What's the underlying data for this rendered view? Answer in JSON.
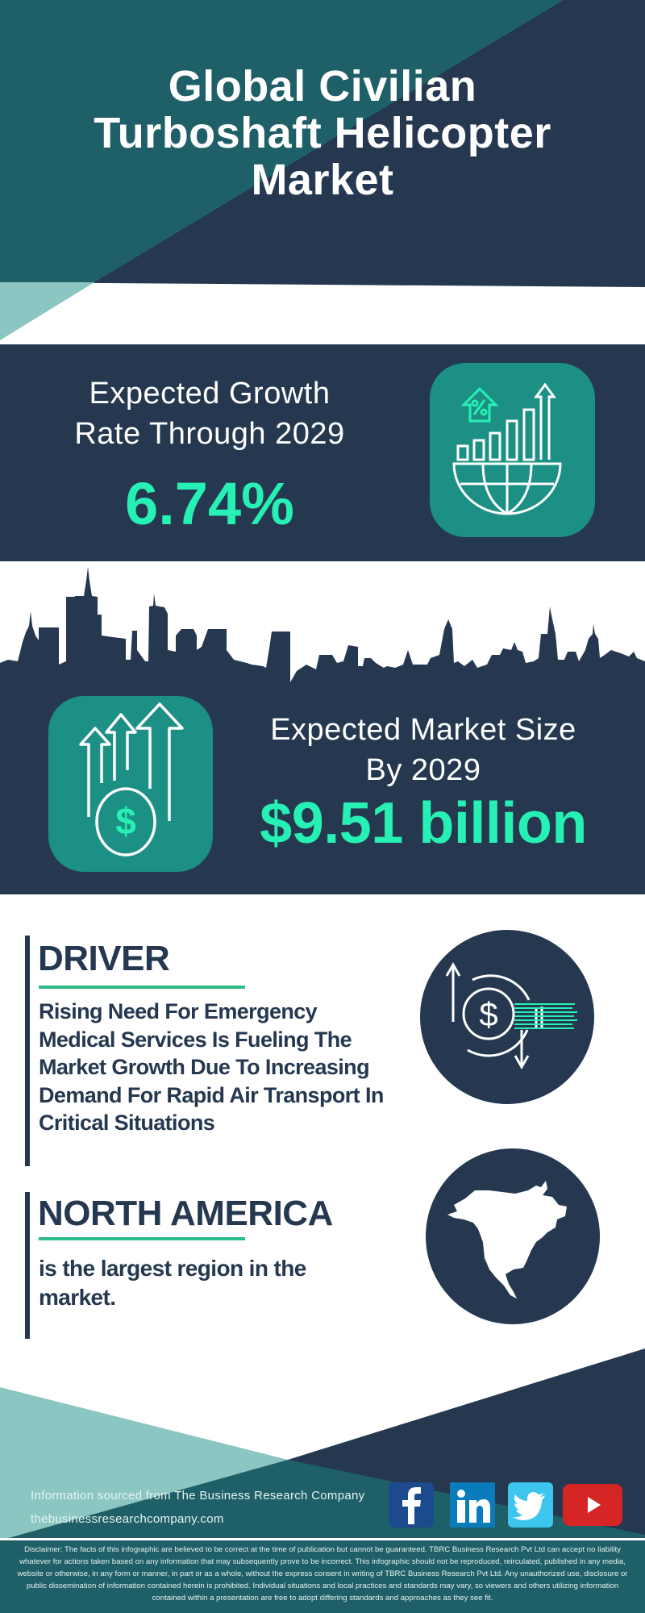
{
  "header": {
    "title_lines": [
      "Global Civilian",
      "Turboshaft Helicopter",
      "Market"
    ]
  },
  "growth": {
    "label_lines": [
      "Expected Growth",
      "Rate Through 2029"
    ],
    "value": "6.74%",
    "icon": "globe-bar-chart-growth-icon"
  },
  "market_size": {
    "label_lines": [
      "Expected Market Size",
      "By 2029"
    ],
    "value": "$9.51 billion",
    "icon": "dollar-arrows-up-icon"
  },
  "driver": {
    "heading": "DRIVER",
    "text": "Rising Need For Emergency Medical Services Is Fueling The Market Growth Due To Increasing Demand For Rapid Air Transport In Critical Situations",
    "icon": "dollar-exchange-icon"
  },
  "region": {
    "heading": "NORTH AMERICA",
    "text": "is the largest region in the market.",
    "icon": "north-america-map-icon"
  },
  "footer": {
    "source_line": "Information sourced from The Business Research Company",
    "website": "thebusinessresearchcompany.com",
    "social": [
      "facebook",
      "linkedin",
      "twitter",
      "youtube"
    ],
    "disclaimer": "Disclaimer: The facts of this infographic are believed to be correct at the time of publication but cannot be guaranteed. TBRC Business Research Pvt Ltd can accept no liability whatever for actions taken based on any information that may subsequently prove to be incorrect. This infographic should not be reproduced, reirculated, published in any media, website or otherwise, in any form or manner, in part or as a whole, without the express consent in writing of TBRC Business Research Pvt Ltd. Any unauthorized use, disclosure or public dissemination of information contained herein is prohibited. Individual situations and local practices and standards may vary, so viewers and others utilizing information contained within a presentation are free to adopt differing standards and approaches as they see fit."
  },
  "colors": {
    "navy": "#253850",
    "teal_dark": "#1f6068",
    "teal_light": "#8cc6c2",
    "icon_box": "#1c9085",
    "accent_green": "#27f0b4",
    "underline_green": "#2dbb86"
  }
}
